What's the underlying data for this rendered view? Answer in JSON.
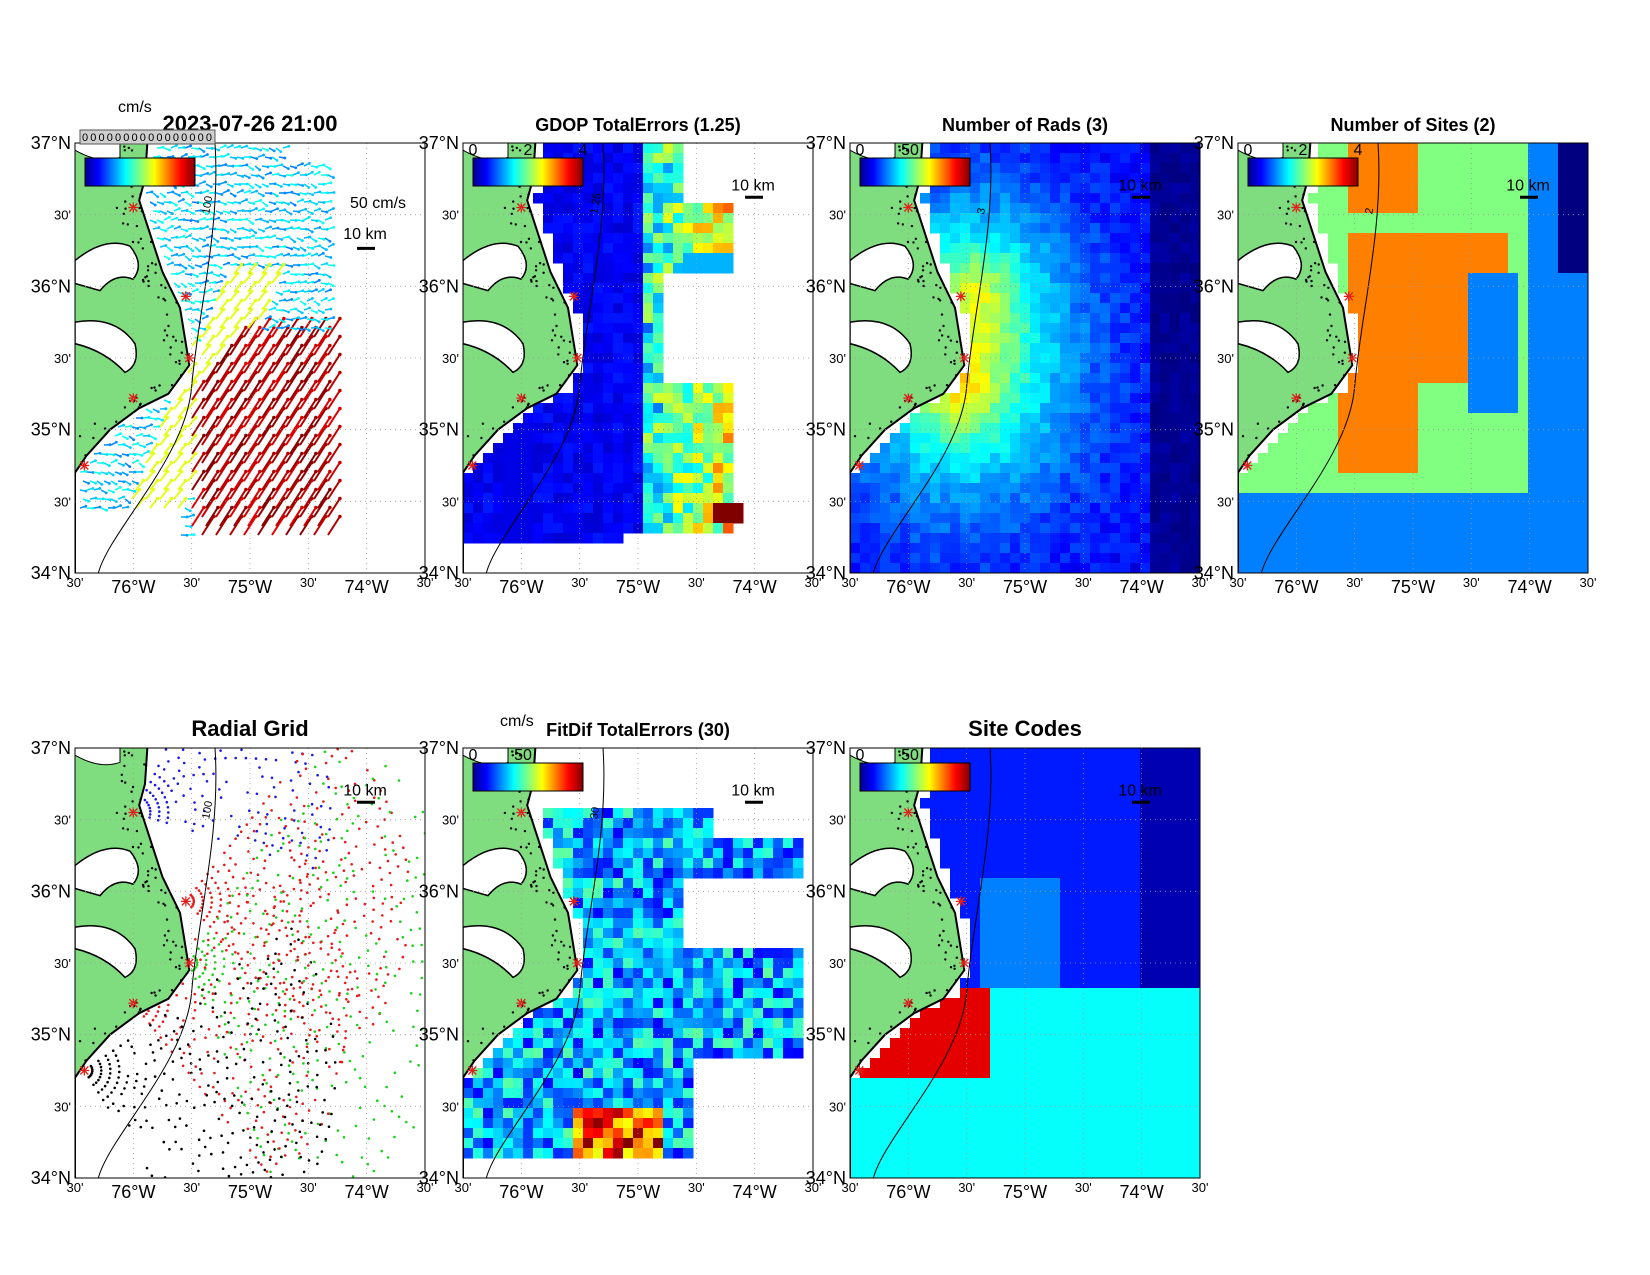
{
  "colors": {
    "land": "#7fdc7f",
    "coast": "#000000",
    "site_marker": "#e0201a",
    "background": "#ffffff"
  },
  "axes": {
    "lat_labels": [
      "37°N",
      "30'",
      "36°N",
      "30'",
      "35°N",
      "30'",
      "34°N"
    ],
    "lon_labels": [
      "30'",
      "76°W",
      "30'",
      "75°W",
      "30'",
      "74°W",
      "30'"
    ],
    "lat_range": [
      34,
      37
    ],
    "lon_range": [
      -76.5,
      -73.5
    ],
    "grid": "dotted"
  },
  "panels": [
    {
      "id": "currents",
      "title": "2023-07-26 21:00",
      "colorbar_unit": "cm/s",
      "colorbar_ticks": [],
      "overlay_label": "0000000000000000",
      "legend_text": "50 cm/s",
      "scale_label": "10 km",
      "contour_label": "100",
      "fill_type": "vectors"
    },
    {
      "id": "gdop",
      "title": "GDOP TotalErrors (1.25)",
      "colorbar_unit": "",
      "colorbar_ticks": [
        "0",
        "2",
        "4"
      ],
      "scale_label": "10 km",
      "contour_label": "1.25",
      "fill_type": "gdop"
    },
    {
      "id": "numrads",
      "title": "Number of Rads (3)",
      "colorbar_unit": "",
      "colorbar_ticks": [
        "0",
        "50"
      ],
      "scale_label": "10 km",
      "contour_label": "3",
      "fill_type": "rads"
    },
    {
      "id": "numsites",
      "title": "Number of Sites (2)",
      "colorbar_unit": "",
      "colorbar_ticks": [
        "0",
        "2",
        "4"
      ],
      "scale_label": "10 km",
      "contour_label": "2",
      "fill_type": "sites"
    },
    {
      "id": "radialgrid",
      "title": "Radial Grid",
      "colorbar_unit": "",
      "colorbar_ticks": [],
      "scale_label": "10 km",
      "contour_label": "100",
      "fill_type": "grid"
    },
    {
      "id": "fitdif",
      "title": "FitDif TotalErrors (30)",
      "colorbar_unit": "cm/s",
      "colorbar_ticks": [
        "0",
        "50"
      ],
      "scale_label": "10 km",
      "contour_label": "30",
      "fill_type": "fitdif"
    },
    {
      "id": "sitecodes",
      "title": "Site Codes",
      "colorbar_unit": "",
      "colorbar_ticks": [
        "0",
        "50"
      ],
      "scale_label": "10 km",
      "contour_label": "",
      "fill_type": "codes"
    }
  ],
  "radar_sites": [
    {
      "lat": 36.55,
      "lon": -76.0
    },
    {
      "lat": 35.93,
      "lon": -75.55
    },
    {
      "lat": 35.5,
      "lon": -75.52
    },
    {
      "lat": 35.22,
      "lon": -76.0
    },
    {
      "lat": 34.75,
      "lon": -76.42
    }
  ]
}
